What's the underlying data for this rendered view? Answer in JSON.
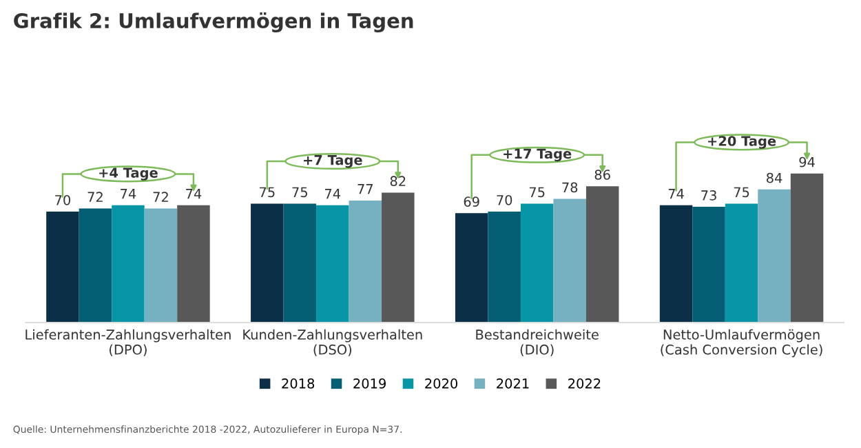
{
  "chart_data": {
    "type": "bar",
    "title": "Grafik 2: Umlaufvermögen in Tagen",
    "categories": [
      "Lieferanten-Zahlungsverhalten\n(DPO)",
      "Kunden-Zahlungsverhalten\n(DSO)",
      "Bestandreichweite\n(DIO)",
      "Netto-Umlaufvermögen\n(Cash Conversion Cycle)"
    ],
    "series": [
      {
        "name": "2018",
        "color": "#0b2f47",
        "values": [
          70,
          75,
          69,
          74
        ]
      },
      {
        "name": "2019",
        "color": "#035d73",
        "values": [
          72,
          75,
          70,
          73
        ]
      },
      {
        "name": "2020",
        "color": "#0796a6",
        "values": [
          74,
          74,
          75,
          75
        ]
      },
      {
        "name": "2021",
        "color": "#75b1c1",
        "values": [
          72,
          77,
          78,
          84
        ]
      },
      {
        "name": "2022",
        "color": "#585858",
        "values": [
          74,
          82,
          86,
          94
        ]
      }
    ],
    "tick_labels": "x",
    "data_labels": true,
    "legend": "bottom",
    "grid": false,
    "annotations": [
      "+4 Tage",
      "+7 Tage",
      "+17 Tage",
      "+20 Tage",
      "Quelle: Unternehmensfinanzberichte 2018 -2022, Autozulieferer in Europa N=37."
    ]
  }
}
